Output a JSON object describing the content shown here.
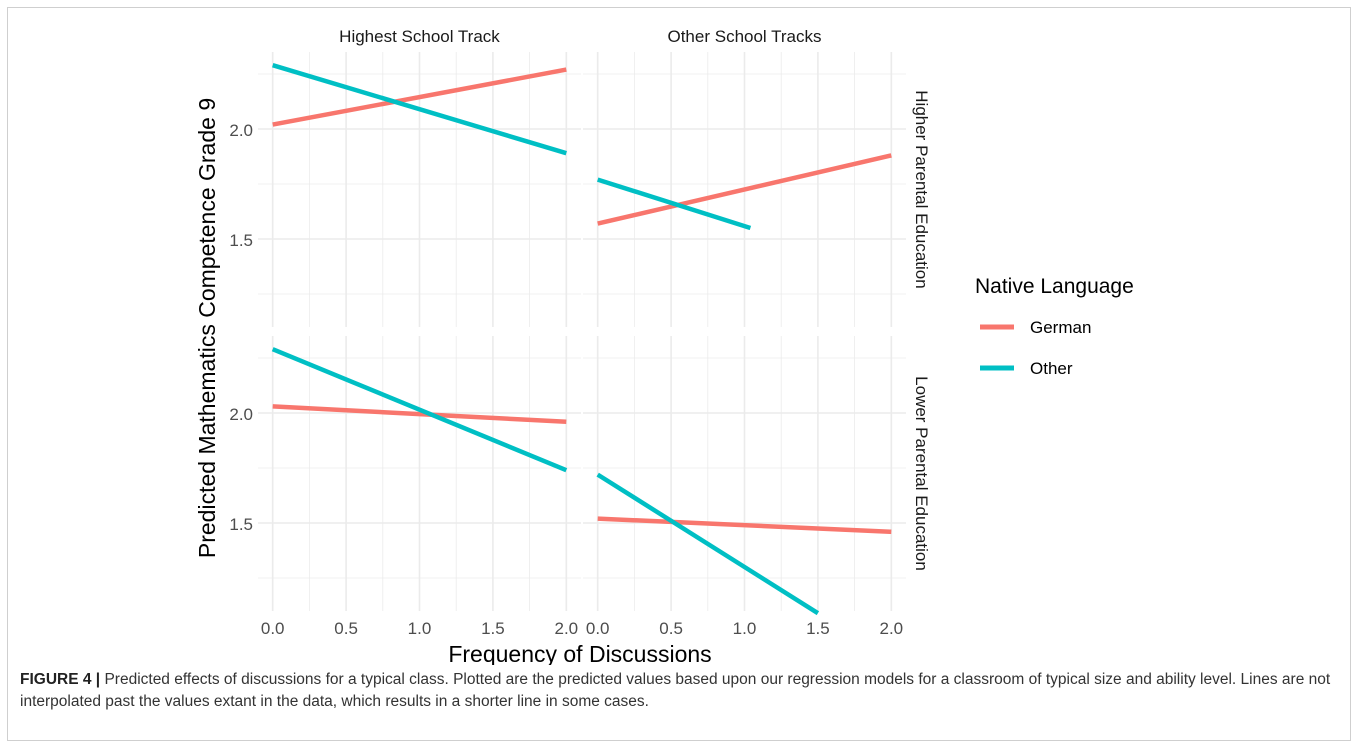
{
  "colors": {
    "German": "#F8766D",
    "Other": "#00BFC4",
    "grid": "#EBEBEB",
    "text": "#4D4D4D"
  },
  "caption": {
    "label": "FIGURE 4 |",
    "text": " Predicted effects of discussions for a typical class. Plotted are the predicted values based upon our regression models for a classroom of typical size and ability level. Lines are not interpolated past the values extant in the data, which results in a shorter line in some cases."
  },
  "chart_data": {
    "type": "line",
    "xlabel": "Frequency of Discussions",
    "ylabel": "Predicted Mathematics Competence Grade 9",
    "xlim": [
      -0.1,
      2.1
    ],
    "ylim": [
      1.1,
      2.35
    ],
    "x_ticks": [
      "0.0",
      "0.5",
      "1.0",
      "1.5",
      "2.0"
    ],
    "y_ticks": [
      "1.5",
      "2.0"
    ],
    "grid": true,
    "legend": {
      "title": "Native Language",
      "position": "right",
      "entries": [
        "German",
        "Other"
      ]
    },
    "column_facets": [
      "Highest School Track",
      "Other School Tracks"
    ],
    "row_facets": [
      "Higher Parental Education",
      "Lower Parental Education"
    ],
    "panels": [
      {
        "column": "Highest School Track",
        "row": "Higher Parental Education",
        "series": [
          {
            "name": "German",
            "x": [
              0.0,
              2.0
            ],
            "y": [
              2.02,
              2.27
            ]
          },
          {
            "name": "Other",
            "x": [
              0.0,
              2.0
            ],
            "y": [
              2.29,
              1.89
            ]
          }
        ]
      },
      {
        "column": "Other School Tracks",
        "row": "Higher Parental Education",
        "series": [
          {
            "name": "German",
            "x": [
              0.0,
              2.0
            ],
            "y": [
              1.57,
              1.88
            ]
          },
          {
            "name": "Other",
            "x": [
              0.0,
              1.04
            ],
            "y": [
              1.77,
              1.55
            ]
          }
        ]
      },
      {
        "column": "Highest School Track",
        "row": "Lower Parental Education",
        "series": [
          {
            "name": "German",
            "x": [
              0.0,
              2.0
            ],
            "y": [
              2.03,
              1.96
            ]
          },
          {
            "name": "Other",
            "x": [
              0.0,
              2.0
            ],
            "y": [
              2.29,
              1.74
            ]
          }
        ]
      },
      {
        "column": "Other School Tracks",
        "row": "Lower Parental Education",
        "series": [
          {
            "name": "German",
            "x": [
              0.0,
              2.0
            ],
            "y": [
              1.52,
              1.46
            ]
          },
          {
            "name": "Other",
            "x": [
              0.0,
              1.5
            ],
            "y": [
              1.72,
              1.09
            ]
          }
        ]
      }
    ]
  }
}
